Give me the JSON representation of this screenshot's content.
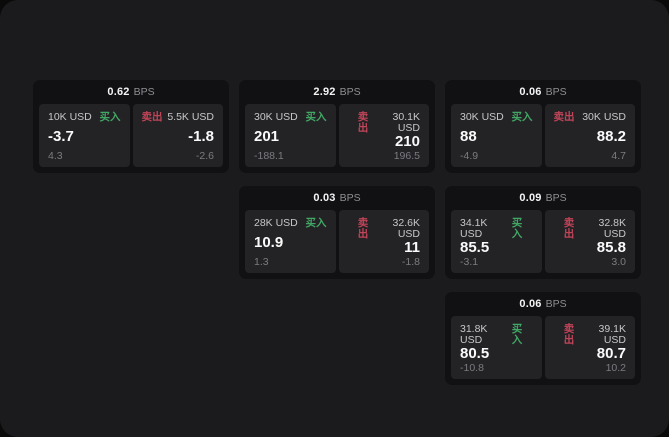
{
  "colors": {
    "panel_background": "#1b1b1d",
    "card_background": "#111113",
    "tile_background": "#232326",
    "buy_accent": "#42a765",
    "sell_accent": "#c14459",
    "value_text": "#fafafa",
    "muted_text": "#7c7c80"
  },
  "labels": {
    "bps_unit": "BPS",
    "buy": "买入",
    "sell": "卖出"
  },
  "cards": [
    {
      "bps_value": "0.62",
      "bps_unit": "BPS",
      "buy": {
        "amount": "10K USD",
        "side_label": "买入",
        "value": "-3.7",
        "sub_value": "4.3"
      },
      "sell": {
        "amount": "5.5K USD",
        "side_label": "卖出",
        "value": "-1.8",
        "sub_value": "-2.6"
      }
    },
    {
      "bps_value": "2.92",
      "bps_unit": "BPS",
      "buy": {
        "amount": "30K USD",
        "side_label": "买入",
        "value": "201",
        "sub_value": "-188.1"
      },
      "sell": {
        "amount": "30.1K USD",
        "side_label": "卖出",
        "value": "210",
        "sub_value": "196.5"
      }
    },
    {
      "bps_value": "0.06",
      "bps_unit": "BPS",
      "buy": {
        "amount": "30K USD",
        "side_label": "买入",
        "value": "88",
        "sub_value": "-4.9"
      },
      "sell": {
        "amount": "30K USD",
        "side_label": "卖出",
        "value": "88.2",
        "sub_value": "4.7"
      }
    },
    {
      "bps_value": "0.03",
      "bps_unit": "BPS",
      "buy": {
        "amount": "28K USD",
        "side_label": "买入",
        "value": "10.9",
        "sub_value": "1.3"
      },
      "sell": {
        "amount": "32.6K USD",
        "side_label": "卖出",
        "value": "11",
        "sub_value": "-1.8"
      }
    },
    {
      "bps_value": "0.09",
      "bps_unit": "BPS",
      "buy": {
        "amount": "34.1K USD",
        "side_label": "买入",
        "value": "85.5",
        "sub_value": "-3.1"
      },
      "sell": {
        "amount": "32.8K USD",
        "side_label": "卖出",
        "value": "85.8",
        "sub_value": "3.0"
      }
    },
    {
      "bps_value": "0.06",
      "bps_unit": "BPS",
      "buy": {
        "amount": "31.8K USD",
        "side_label": "买入",
        "value": "80.5",
        "sub_value": "-10.8"
      },
      "sell": {
        "amount": "39.1K USD",
        "side_label": "卖出",
        "value": "80.7",
        "sub_value": "10.2"
      }
    }
  ]
}
